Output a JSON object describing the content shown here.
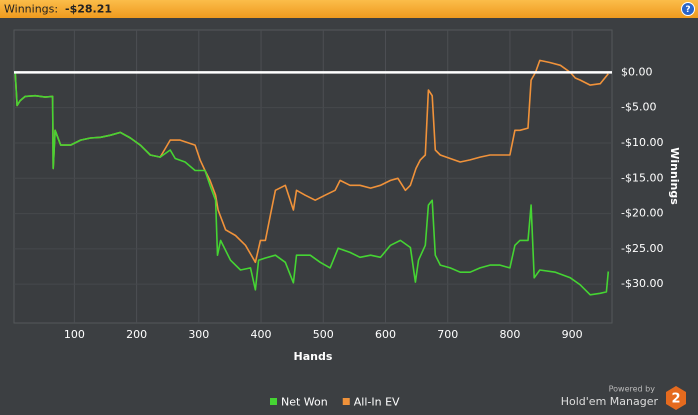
{
  "header": {
    "label": "Winnings:",
    "value": "-$28.21",
    "help": "?"
  },
  "chart_data": {
    "type": "line",
    "x_label": "Hands",
    "y_label": "Winnings",
    "xlim": [
      3,
      964
    ],
    "xticks": [
      100,
      200,
      300,
      400,
      500,
      600,
      700,
      800,
      900
    ],
    "ylim": [
      -35.5,
      6
    ],
    "yticks": [
      {
        "value": 0,
        "label": "$0.00"
      },
      {
        "value": -5,
        "label": "-$5.00"
      },
      {
        "value": -10,
        "label": "-$10.00"
      },
      {
        "value": -15,
        "label": "-$15.00"
      },
      {
        "value": -20,
        "label": "-$20.00"
      },
      {
        "value": -25,
        "label": "-$25.00"
      },
      {
        "value": -30,
        "label": "-$30.00"
      }
    ],
    "grid": true,
    "zero_line": true,
    "series": [
      {
        "name": "Net Won",
        "color": "#45d433",
        "x": [
          5,
          8,
          13,
          21,
          37,
          53,
          65,
          66,
          69,
          78,
          94,
          110,
          126,
          142,
          158,
          174,
          190,
          206,
          222,
          238,
          254,
          262,
          278,
          294,
          310,
          318,
          327,
          330,
          335,
          351,
          367,
          383,
          391,
          396,
          407,
          423,
          439,
          452,
          457,
          479,
          495,
          511,
          524,
          543,
          559,
          576,
          592,
          608,
          624,
          640,
          648,
          653,
          664,
          669,
          675,
          680,
          688,
          704,
          720,
          736,
          752,
          768,
          784,
          800,
          808,
          816,
          829,
          834,
          839,
          848,
          873,
          897,
          913,
          929,
          945,
          955,
          958
        ],
        "values": [
          0,
          -4.7,
          -4.0,
          -3.4,
          -3.3,
          -3.5,
          -3.4,
          -13.6,
          -8.2,
          -10.3,
          -10.3,
          -9.6,
          -9.3,
          -9.2,
          -8.9,
          -8.5,
          -9.3,
          -10.3,
          -11.7,
          -12.0,
          -11.0,
          -12.2,
          -12.7,
          -13.9,
          -13.9,
          -16.0,
          -18.1,
          -25.9,
          -23.8,
          -26.6,
          -28.0,
          -27.7,
          -30.8,
          -26.6,
          -26.3,
          -25.9,
          -26.9,
          -29.8,
          -25.9,
          -25.9,
          -26.9,
          -27.7,
          -24.9,
          -25.5,
          -26.2,
          -25.9,
          -26.2,
          -24.5,
          -23.8,
          -24.8,
          -29.7,
          -26.6,
          -24.5,
          -18.8,
          -18.1,
          -25.9,
          -27.3,
          -27.7,
          -28.3,
          -28.3,
          -27.7,
          -27.3,
          -27.3,
          -27.7,
          -24.5,
          -23.8,
          -23.8,
          -18.8,
          -29.1,
          -28.0,
          -28.3,
          -29.1,
          -30.1,
          -31.5,
          -31.3,
          -31.1,
          -28.2
        ]
      },
      {
        "name": "All-In EV",
        "color": "#f0923a",
        "x": [
          5,
          8,
          13,
          21,
          37,
          53,
          65,
          66,
          69,
          78,
          94,
          110,
          126,
          142,
          158,
          174,
          190,
          206,
          222,
          238,
          254,
          270,
          294,
          302,
          310,
          318,
          327,
          331,
          343,
          359,
          375,
          391,
          399,
          407,
          415,
          423,
          439,
          452,
          457,
          471,
          487,
          503,
          519,
          527,
          543,
          559,
          576,
          592,
          608,
          620,
          632,
          640,
          649,
          656,
          664,
          669,
          675,
          680,
          688,
          704,
          720,
          736,
          752,
          768,
          784,
          800,
          808,
          816,
          829,
          834,
          841,
          848,
          864,
          881,
          897,
          905,
          913,
          929,
          945,
          958
        ],
        "values": [
          0,
          -4.7,
          -4.0,
          -3.4,
          -3.3,
          -3.5,
          -3.4,
          -13.6,
          -8.2,
          -10.3,
          -10.3,
          -9.6,
          -9.3,
          -9.2,
          -8.9,
          -8.5,
          -9.3,
          -10.3,
          -11.7,
          -12.0,
          -9.6,
          -9.6,
          -10.3,
          -12.4,
          -13.9,
          -15.3,
          -17.4,
          -19.5,
          -22.3,
          -23.1,
          -24.5,
          -26.9,
          -23.8,
          -23.8,
          -20.2,
          -16.7,
          -16.0,
          -19.5,
          -16.7,
          -17.4,
          -18.1,
          -17.4,
          -16.7,
          -15.3,
          -16.0,
          -16.0,
          -16.4,
          -16.0,
          -15.3,
          -15.0,
          -16.7,
          -16.0,
          -13.6,
          -12.4,
          -11.7,
          -2.5,
          -3.3,
          -11.0,
          -11.7,
          -12.2,
          -12.7,
          -12.4,
          -12.0,
          -11.7,
          -11.7,
          -11.7,
          -8.2,
          -8.2,
          -7.9,
          -1.1,
          0,
          1.7,
          1.4,
          1.0,
          0,
          -0.8,
          -1.1,
          -1.8,
          -1.6,
          -0.2
        ]
      }
    ]
  },
  "branding": {
    "powered_by": "Powered by",
    "product": "Hold'em Manager",
    "logo": "2"
  }
}
